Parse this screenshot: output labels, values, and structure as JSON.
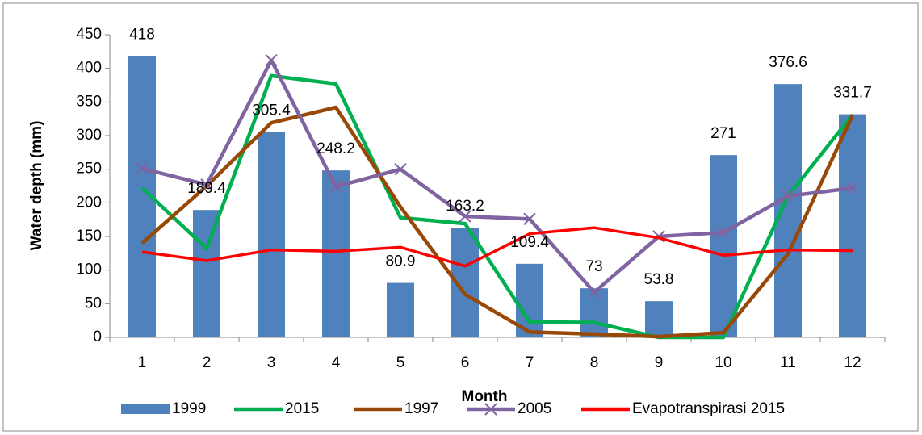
{
  "chart_data": {
    "type": "combo",
    "y_label": "Water depth (mm)",
    "x_label": "Month",
    "categories": [
      "1",
      "2",
      "3",
      "4",
      "5",
      "6",
      "7",
      "8",
      "9",
      "10",
      "11",
      "12"
    ],
    "ylim": [
      0,
      450
    ],
    "yticks": [
      0,
      50,
      100,
      150,
      200,
      250,
      300,
      350,
      400,
      450
    ],
    "series": [
      {
        "name": "1999",
        "type": "bar",
        "color": "#4f81bd",
        "values": [
          418,
          189.4,
          305.4,
          248.2,
          80.9,
          163.2,
          109.4,
          73,
          53.8,
          271,
          376.6,
          331.7
        ]
      },
      {
        "name": "2015",
        "type": "line",
        "color": "#00b050",
        "values": [
          222,
          132,
          389,
          377,
          178,
          169,
          23,
          22,
          0,
          0,
          210,
          331
        ]
      },
      {
        "name": "1997",
        "type": "line",
        "color": "#984807",
        "values": [
          140,
          225,
          319,
          342,
          194,
          64,
          8,
          5,
          1,
          7,
          124,
          330
        ]
      },
      {
        "name": "2005",
        "type": "line",
        "color": "#8064a2",
        "marker": "x",
        "values": [
          251,
          227,
          412,
          224,
          250,
          180,
          176,
          67,
          150,
          156,
          210,
          222
        ]
      },
      {
        "name": "Evapotranspirasi 2015",
        "type": "line",
        "color": "#ff0000",
        "values": [
          127,
          114,
          130,
          128,
          134,
          106,
          154,
          163,
          148,
          122,
          130,
          129
        ]
      }
    ]
  }
}
